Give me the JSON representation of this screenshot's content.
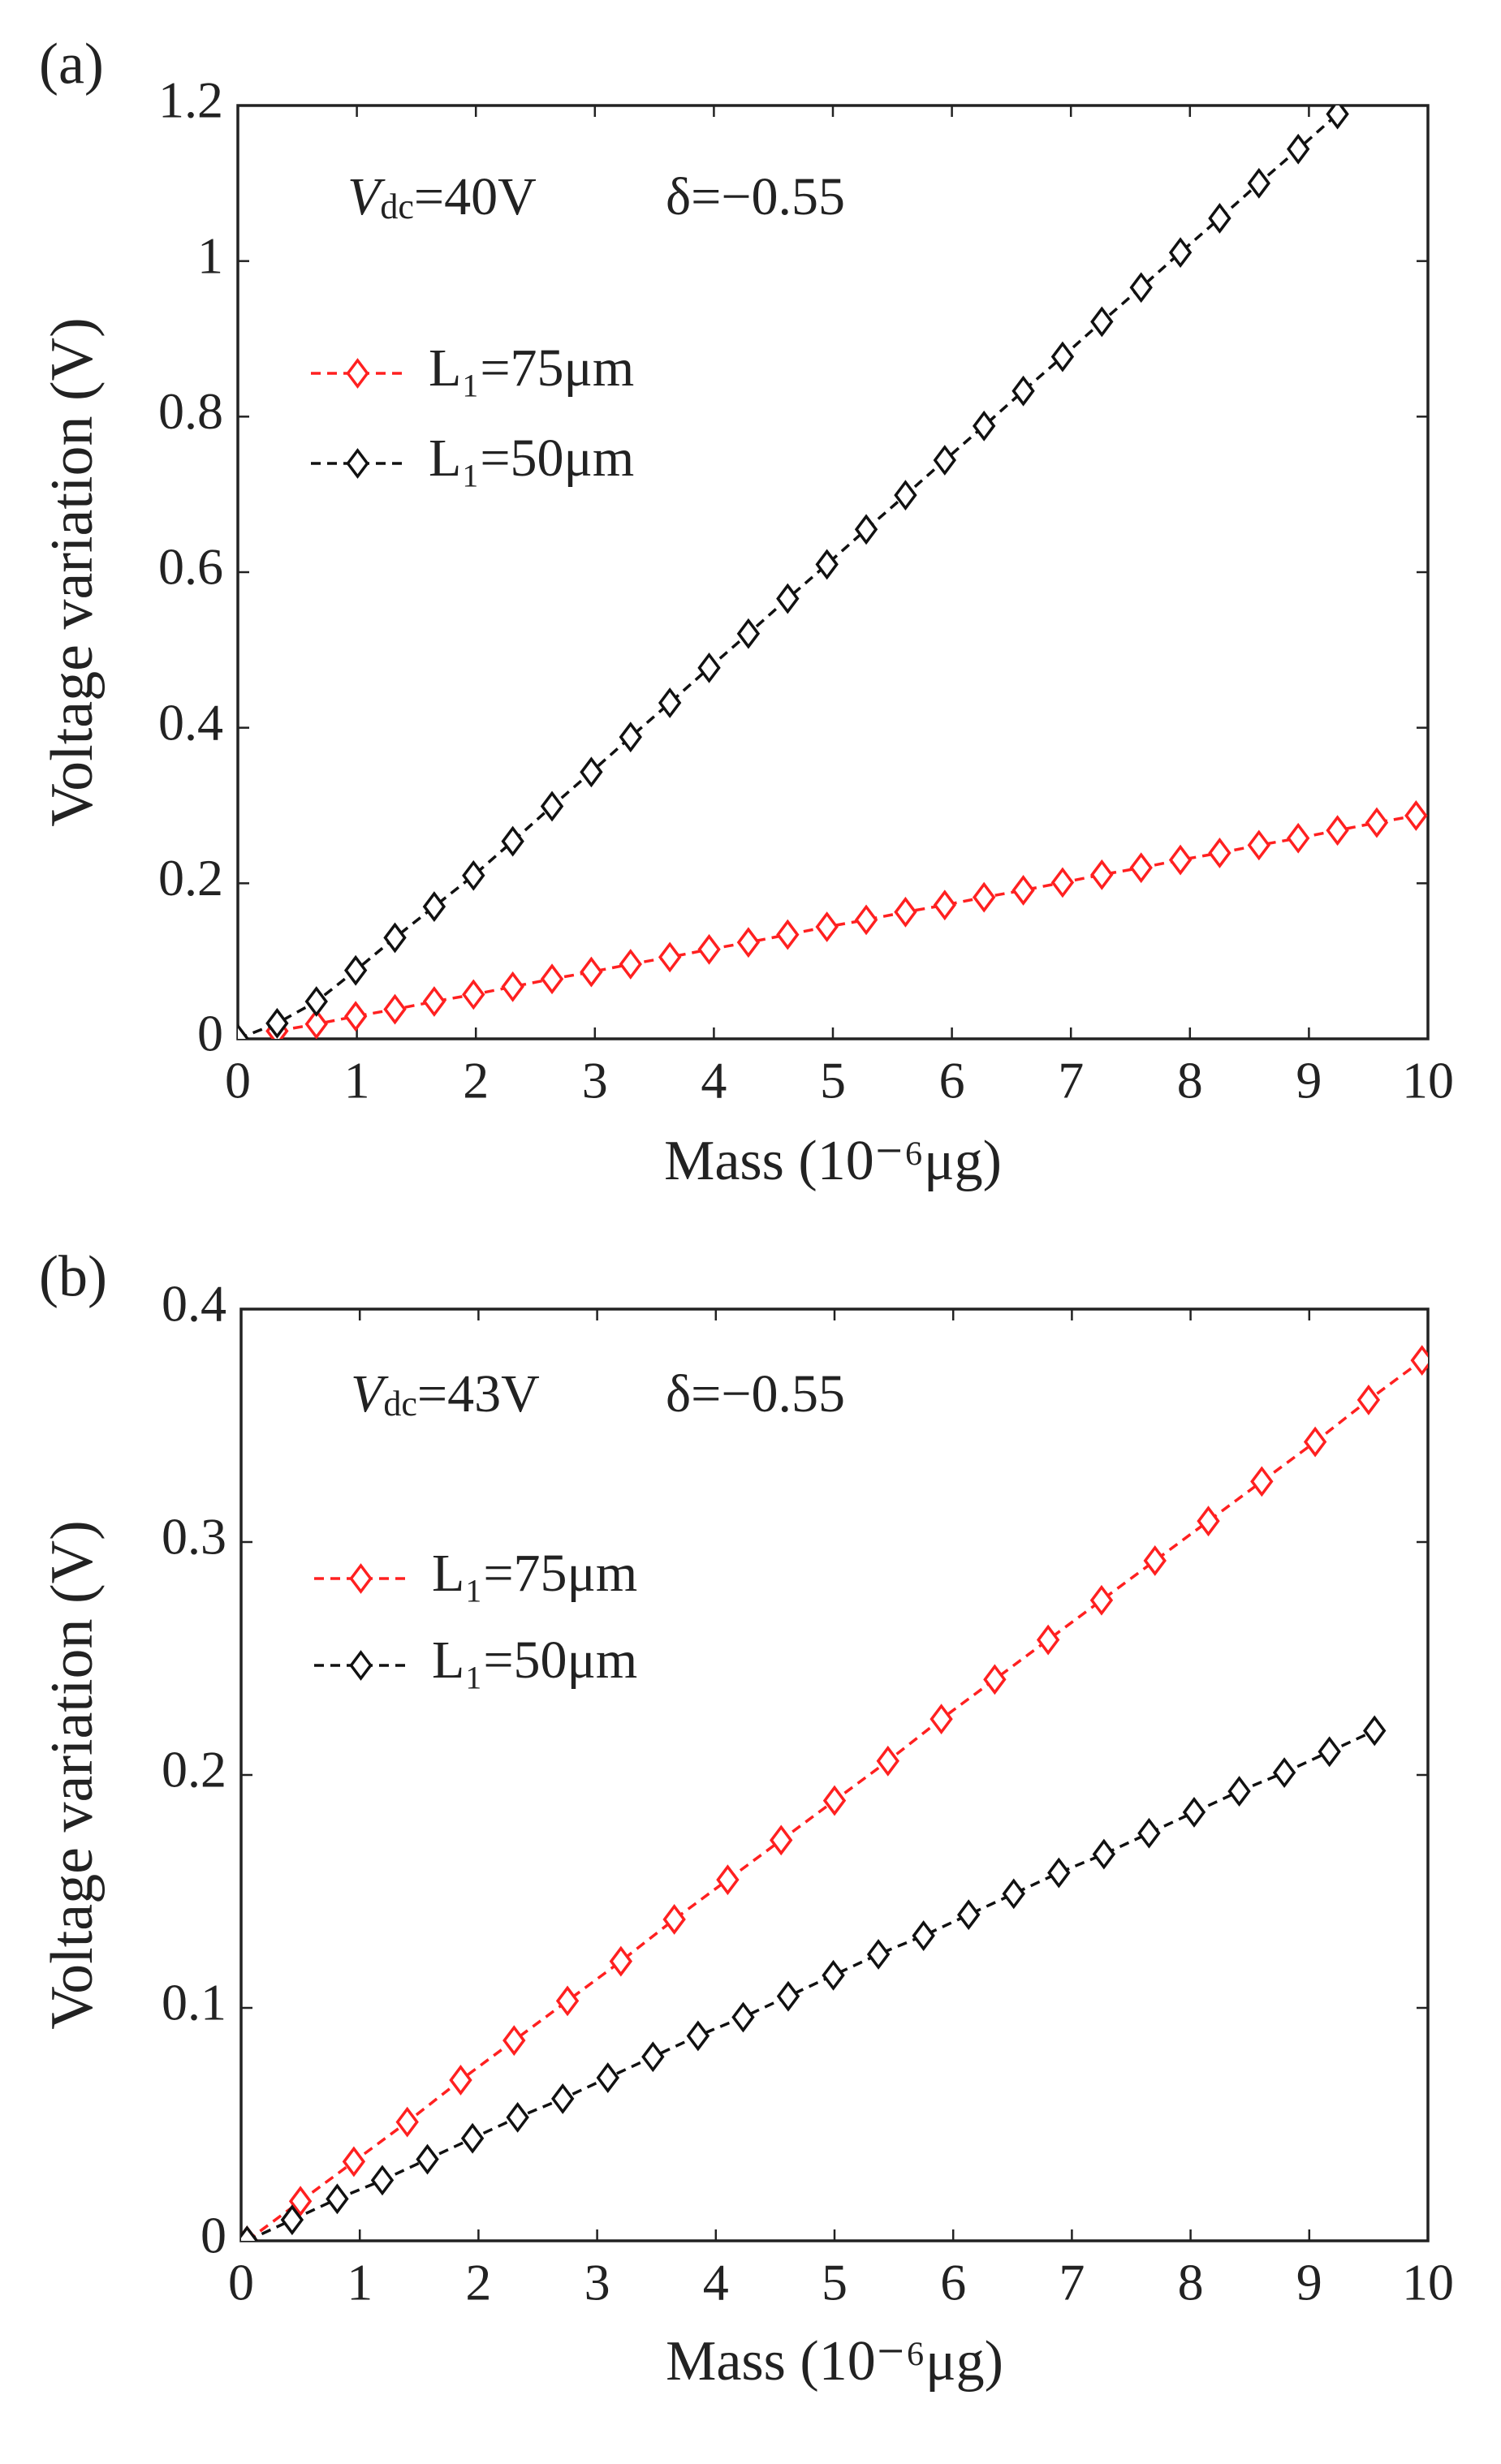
{
  "chart_data": [
    {
      "type": "line",
      "panel_label": "(a)",
      "annotation": {
        "symbol": "V",
        "subscript": "dc",
        "text": "=40V",
        "delta": "δ=−0.55"
      },
      "xlabel": "Mass (10⁻⁶μg)",
      "ylabel": "Voltage variation (V)",
      "xlim": [
        0,
        10
      ],
      "ylim": [
        0,
        1.2
      ],
      "xticks": [
        0,
        1,
        2,
        3,
        4,
        5,
        6,
        7,
        8,
        9,
        10
      ],
      "yticks": [
        0,
        0.2,
        0.4,
        0.6,
        0.8,
        1,
        1.2
      ],
      "legend": "upper left",
      "grid": false,
      "series": [
        {
          "name": "L₁=75μm",
          "color": "#ff2020",
          "x": [
            0.33,
            0.66,
            0.99,
            1.32,
            1.65,
            1.98,
            2.31,
            2.64,
            2.97,
            3.3,
            3.63,
            3.96,
            4.29,
            4.62,
            4.95,
            5.28,
            5.61,
            5.94,
            6.27,
            6.6,
            6.93,
            7.26,
            7.59,
            7.92,
            8.25,
            8.58,
            8.91,
            9.24,
            9.57,
            9.9
          ],
          "values": [
            0.01,
            0.019,
            0.029,
            0.038,
            0.048,
            0.057,
            0.067,
            0.077,
            0.086,
            0.096,
            0.105,
            0.115,
            0.124,
            0.134,
            0.144,
            0.153,
            0.163,
            0.172,
            0.182,
            0.191,
            0.201,
            0.211,
            0.22,
            0.23,
            0.239,
            0.249,
            0.258,
            0.268,
            0.278,
            0.287
          ]
        },
        {
          "name": "L₁=50μm",
          "color": "#111111",
          "x": [
            0,
            0.33,
            0.66,
            0.99,
            1.32,
            1.65,
            1.98,
            2.31,
            2.64,
            2.97,
            3.3,
            3.63,
            3.96,
            4.29,
            4.62,
            4.95,
            5.28,
            5.61,
            5.94,
            6.27,
            6.6,
            6.93,
            7.26,
            7.59,
            7.92,
            8.25,
            8.58,
            8.91,
            9.24
          ],
          "values": [
            0,
            0.02,
            0.048,
            0.088,
            0.13,
            0.17,
            0.21,
            0.254,
            0.299,
            0.343,
            0.388,
            0.432,
            0.477,
            0.521,
            0.566,
            0.61,
            0.655,
            0.699,
            0.744,
            0.788,
            0.833,
            0.877,
            0.922,
            0.966,
            1.011,
            1.055,
            1.1,
            1.144,
            1.189
          ]
        }
      ]
    },
    {
      "type": "line",
      "panel_label": "(b)",
      "annotation": {
        "symbol": "V",
        "subscript": "dc",
        "text": "=43V",
        "delta": "δ=−0.55"
      },
      "xlabel": "Mass (10⁻⁶μg)",
      "ylabel": "Voltage variation (V)",
      "xlim": [
        0,
        10
      ],
      "ylim": [
        0,
        0.4
      ],
      "xticks": [
        0,
        1,
        2,
        3,
        4,
        5,
        6,
        7,
        8,
        9,
        10
      ],
      "yticks": [
        0,
        0.1,
        0.2,
        0.3,
        0.4
      ],
      "legend": "upper left",
      "grid": false,
      "series": [
        {
          "name": "L₁=75μm",
          "color": "#ff2020",
          "x": [
            0.05,
            0.5,
            0.95,
            1.4,
            1.85,
            2.3,
            2.75,
            3.2,
            3.65,
            4.1,
            4.55,
            5.0,
            5.45,
            5.9,
            6.35,
            6.8,
            7.25,
            7.7,
            8.15,
            8.6,
            9.05,
            9.5,
            9.95
          ],
          "values": [
            0,
            0.017,
            0.034,
            0.051,
            0.069,
            0.086,
            0.103,
            0.12,
            0.138,
            0.155,
            0.172,
            0.189,
            0.206,
            0.224,
            0.241,
            0.258,
            0.275,
            0.292,
            0.309,
            0.326,
            0.343,
            0.361,
            0.378
          ]
        },
        {
          "name": "L₁=50μm",
          "color": "#111111",
          "x": [
            0.05,
            0.43,
            0.81,
            1.19,
            1.57,
            1.95,
            2.33,
            2.71,
            3.09,
            3.47,
            3.85,
            4.23,
            4.61,
            4.99,
            5.37,
            5.75,
            6.13,
            6.51,
            6.89,
            7.27,
            7.65,
            8.03,
            8.41,
            8.79,
            9.17,
            9.55
          ],
          "values": [
            0,
            0.009,
            0.018,
            0.026,
            0.035,
            0.044,
            0.053,
            0.061,
            0.07,
            0.079,
            0.088,
            0.096,
            0.105,
            0.114,
            0.123,
            0.131,
            0.14,
            0.149,
            0.158,
            0.166,
            0.175,
            0.184,
            0.193,
            0.201,
            0.21,
            0.219
          ]
        }
      ]
    }
  ]
}
